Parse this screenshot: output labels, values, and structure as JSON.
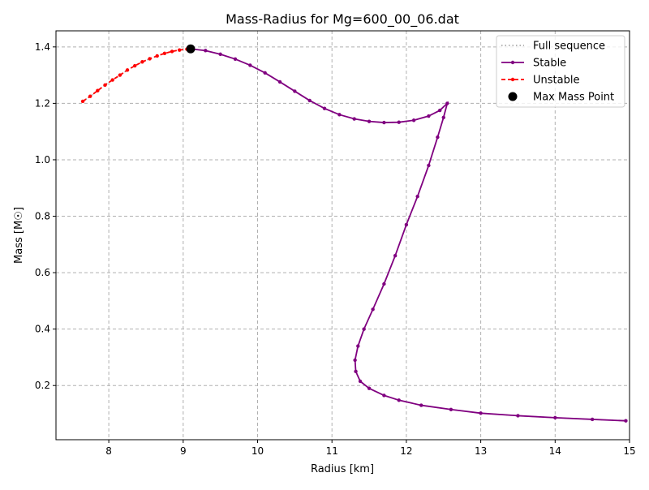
{
  "chart_data": {
    "type": "line",
    "title": "Mass-Radius for Mg=600_00_06.dat",
    "xlabel": "Radius [km]",
    "ylabel": "Mass [M☉]",
    "xlim": [
      7.29,
      15.0
    ],
    "ylim": [
      0.008,
      1.457
    ],
    "xticks": [
      8,
      9,
      10,
      11,
      12,
      13,
      14,
      15
    ],
    "yticks": [
      0.2,
      0.4,
      0.6,
      0.8,
      1.0,
      1.2,
      1.4
    ],
    "grid": true,
    "legend_placement": "top-right",
    "series": [
      {
        "name": "Full sequence",
        "color": "#aaaaaa",
        "style": "dotted"
      },
      {
        "name": "Stable",
        "color": "#800080",
        "style": "solid-dot",
        "points": [
          [
            9.1,
            1.393
          ],
          [
            9.3,
            1.387
          ],
          [
            9.5,
            1.374
          ],
          [
            9.7,
            1.357
          ],
          [
            9.9,
            1.335
          ],
          [
            10.1,
            1.308
          ],
          [
            10.3,
            1.276
          ],
          [
            10.5,
            1.243
          ],
          [
            10.7,
            1.21
          ],
          [
            10.9,
            1.182
          ],
          [
            11.1,
            1.16
          ],
          [
            11.3,
            1.145
          ],
          [
            11.5,
            1.136
          ],
          [
            11.7,
            1.132
          ],
          [
            11.9,
            1.133
          ],
          [
            12.1,
            1.14
          ],
          [
            12.3,
            1.155
          ],
          [
            12.45,
            1.175
          ],
          [
            12.55,
            1.2
          ],
          [
            12.5,
            1.15
          ],
          [
            12.42,
            1.08
          ],
          [
            12.3,
            0.98
          ],
          [
            12.15,
            0.87
          ],
          [
            12.0,
            0.77
          ],
          [
            11.85,
            0.66
          ],
          [
            11.7,
            0.56
          ],
          [
            11.55,
            0.47
          ],
          [
            11.43,
            0.4
          ],
          [
            11.35,
            0.34
          ],
          [
            11.31,
            0.29
          ],
          [
            11.32,
            0.25
          ],
          [
            11.38,
            0.215
          ],
          [
            11.5,
            0.19
          ],
          [
            11.7,
            0.165
          ],
          [
            11.9,
            0.148
          ],
          [
            12.2,
            0.13
          ],
          [
            12.6,
            0.115
          ],
          [
            13.0,
            0.102
          ],
          [
            13.5,
            0.093
          ],
          [
            14.0,
            0.086
          ],
          [
            14.5,
            0.08
          ],
          [
            14.95,
            0.075
          ]
        ]
      },
      {
        "name": "Unstable",
        "color": "#ff0000",
        "style": "dashed-dot",
        "points": [
          [
            7.65,
            1.207
          ],
          [
            7.75,
            1.225
          ],
          [
            7.85,
            1.245
          ],
          [
            7.95,
            1.265
          ],
          [
            8.05,
            1.283
          ],
          [
            8.15,
            1.3
          ],
          [
            8.25,
            1.318
          ],
          [
            8.35,
            1.333
          ],
          [
            8.45,
            1.347
          ],
          [
            8.55,
            1.358
          ],
          [
            8.65,
            1.368
          ],
          [
            8.75,
            1.377
          ],
          [
            8.85,
            1.384
          ],
          [
            8.95,
            1.389
          ],
          [
            9.05,
            1.392
          ],
          [
            9.1,
            1.393
          ]
        ]
      },
      {
        "name": "Max Mass Point",
        "color": "#000000",
        "style": "marker",
        "points": [
          [
            9.1,
            1.393
          ]
        ]
      }
    ]
  }
}
